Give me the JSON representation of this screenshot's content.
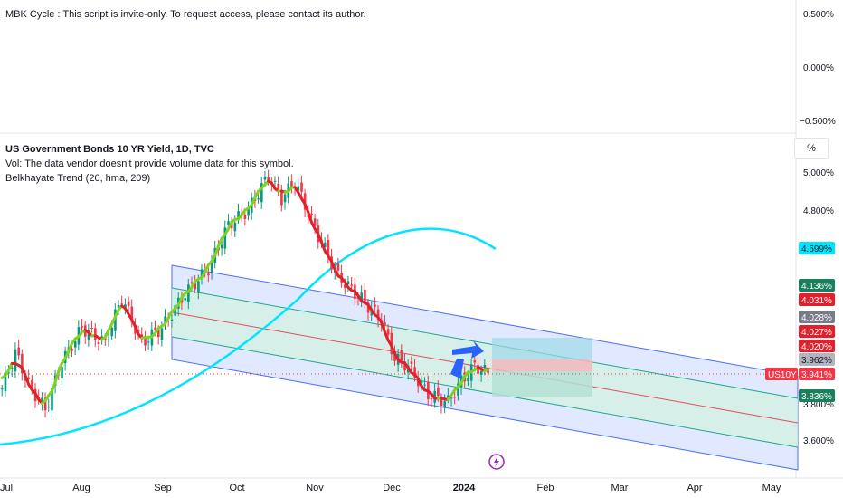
{
  "indicator_pane": {
    "legend": "MBK Cycle : This script is invite-only. To request access, please contact its author.",
    "y_ticks": [
      "0.500%",
      "0.000%",
      "−0.500%"
    ]
  },
  "main_pane": {
    "symbol_title": "US Government Bonds 10 YR Yield, 1D, TVC",
    "volume_note": "Vol: The data vendor doesn't provide volume data for this symbol.",
    "trend_indicator": "Belkhayate Trend (20, hma, 209)",
    "scale_mode_label": "%",
    "y_ticks": [
      "5.000%",
      "4.800%",
      "3.800%",
      "3.600%"
    ],
    "price_tags": [
      {
        "text": "4.599%",
        "bg": "#00e5ff",
        "fg": "#131722"
      },
      {
        "text": "4.136%",
        "bg": "#1b7f5c",
        "fg": "#ffffff"
      },
      {
        "text": "4.031%",
        "bg": "#e0202a",
        "fg": "#ffffff"
      },
      {
        "text": "4.028%",
        "bg": "#787b86",
        "fg": "#ffffff"
      },
      {
        "text": "4.027%",
        "bg": "#e0202a",
        "fg": "#ffffff"
      },
      {
        "text": "4.020%",
        "bg": "#e0202a",
        "fg": "#ffffff"
      },
      {
        "text": "3.962%",
        "bg": "#b2b5be",
        "fg": "#131722"
      },
      {
        "text": "3.941%",
        "bg": "#f23645",
        "fg": "#ffffff"
      },
      {
        "text": "3.836%",
        "bg": "#1b7f5c",
        "fg": "#ffffff"
      }
    ],
    "symbol_tag": "US10Y"
  },
  "time_axis": {
    "labels": [
      "Jul",
      "Aug",
      "Sep",
      "Oct",
      "Nov",
      "Dec",
      "2024",
      "Feb",
      "Mar",
      "Apr",
      "May"
    ]
  },
  "colors": {
    "up": "#089981",
    "down": "#f23645",
    "channel_fill": "#d6e2ff",
    "inner_fill": "#d4f0e4",
    "channel_line": "#4a6cf7",
    "inner_line": "#22a58a",
    "mid_line": "#e0505a",
    "long_curve": "#00e5ff",
    "hma_up": "#7fd320",
    "hma_down": "#e0202a",
    "arrow": "#2962ff",
    "event_icon": "#9c27b0"
  },
  "chart_data": {
    "type": "candlestick",
    "title": "US Government Bonds 10 YR Yield, 1D, TVC",
    "unit": "%",
    "y_range_visible": [
      3.52,
      5.06
    ],
    "period": "Jul 2023 – Jan 2024 (daily)",
    "last_price": 3.941,
    "ohlc_approx": [
      {
        "date": "2023-07-03",
        "open": 3.84,
        "high": 3.9,
        "low": 3.8,
        "close": 3.86
      },
      {
        "date": "2023-07-06",
        "open": 3.95,
        "high": 4.07,
        "low": 3.94,
        "close": 4.05
      },
      {
        "date": "2023-07-12",
        "open": 3.97,
        "high": 3.99,
        "low": 3.87,
        "close": 3.88
      },
      {
        "date": "2023-07-19",
        "open": 3.78,
        "high": 3.8,
        "low": 3.73,
        "close": 3.75
      },
      {
        "date": "2023-07-27",
        "open": 3.92,
        "high": 4.02,
        "low": 3.9,
        "close": 4.0
      },
      {
        "date": "2023-08-03",
        "open": 4.1,
        "high": 4.2,
        "low": 4.08,
        "close": 4.18
      },
      {
        "date": "2023-08-21",
        "open": 4.25,
        "high": 4.36,
        "low": 4.24,
        "close": 4.34
      },
      {
        "date": "2023-09-01",
        "open": 4.08,
        "high": 4.19,
        "low": 4.07,
        "close": 4.18
      },
      {
        "date": "2023-09-21",
        "open": 4.4,
        "high": 4.5,
        "low": 4.39,
        "close": 4.49
      },
      {
        "date": "2023-10-03",
        "open": 4.68,
        "high": 4.82,
        "low": 4.67,
        "close": 4.8
      },
      {
        "date": "2023-10-19",
        "open": 4.92,
        "high": 5.0,
        "low": 4.9,
        "close": 4.98
      },
      {
        "date": "2023-10-23",
        "open": 4.95,
        "high": 5.02,
        "low": 4.83,
        "close": 4.86
      },
      {
        "date": "2023-11-14",
        "open": 4.63,
        "high": 4.64,
        "low": 4.43,
        "close": 4.45
      },
      {
        "date": "2023-12-01",
        "open": 4.33,
        "high": 4.35,
        "low": 4.2,
        "close": 4.22
      },
      {
        "date": "2023-12-13",
        "open": 4.19,
        "high": 4.21,
        "low": 4.01,
        "close": 4.02
      },
      {
        "date": "2023-12-27",
        "open": 3.84,
        "high": 3.86,
        "low": 3.78,
        "close": 3.79
      },
      {
        "date": "2024-01-12",
        "open": 3.98,
        "high": 4.0,
        "low": 3.93,
        "close": 3.94
      }
    ],
    "indicators": {
      "belkhayate_trend": {
        "length": 20,
        "ma": "hma",
        "lookback": 209,
        "current_upper": 4.136,
        "current_lower": 3.836
      },
      "long_curve_last": 4.599
    }
  }
}
